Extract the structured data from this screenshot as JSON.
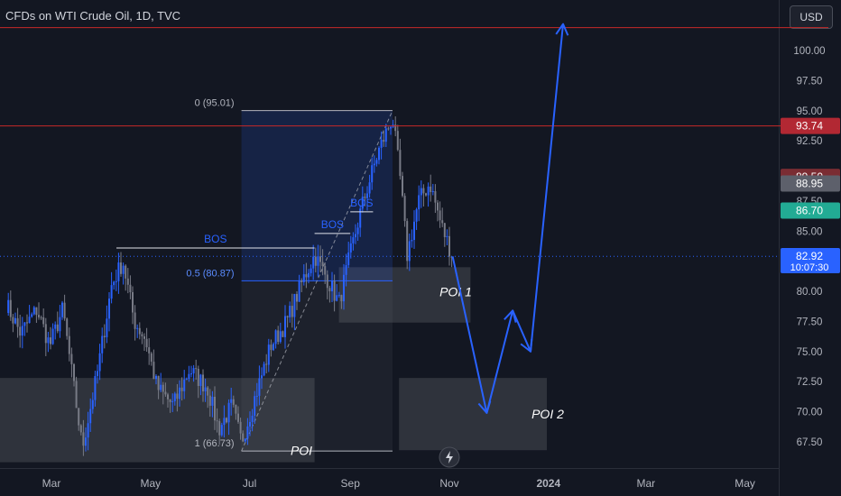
{
  "header": {
    "title": "CFDs on WTI Crude Oil, 1D, TVC",
    "currency": "USD"
  },
  "colors": {
    "background": "#131722",
    "bull": "#2962ff",
    "bear": "#787b86",
    "resistance": "#c62828",
    "fib": "#2962ff",
    "arrow": "#2962ff"
  },
  "chart_data": {
    "type": "candlestick",
    "symbol": "CFDs on WTI Crude Oil",
    "interval": "1D",
    "source": "TVC",
    "ylim": [
      66.0,
      102.5
    ],
    "y_ticks": [
      "100.00",
      "97.50",
      "95.00",
      "92.50",
      "87.50",
      "85.00",
      "80.00",
      "77.50",
      "75.00",
      "72.50",
      "70.00",
      "67.50"
    ],
    "x_ticks": [
      "Mar",
      "May",
      "Jul",
      "Sep",
      "Nov",
      "2024",
      "Mar",
      "May"
    ],
    "close_path": [
      {
        "date": "2023-02-01",
        "price": 79.0
      },
      {
        "date": "2023-02-10",
        "price": 76.5
      },
      {
        "date": "2023-02-20",
        "price": 78.5
      },
      {
        "date": "2023-02-28",
        "price": 75.5
      },
      {
        "date": "2023-03-08",
        "price": 78.5
      },
      {
        "date": "2023-03-20",
        "price": 67.0
      },
      {
        "date": "2023-03-29",
        "price": 73.0
      },
      {
        "date": "2023-04-07",
        "price": 80.5
      },
      {
        "date": "2023-04-14",
        "price": 82.5
      },
      {
        "date": "2023-04-21",
        "price": 77.5
      },
      {
        "date": "2023-04-28",
        "price": 76.0
      },
      {
        "date": "2023-05-05",
        "price": 72.0
      },
      {
        "date": "2023-05-15",
        "price": 70.5
      },
      {
        "date": "2023-05-25",
        "price": 73.5
      },
      {
        "date": "2023-06-05",
        "price": 72.0
      },
      {
        "date": "2023-06-12",
        "price": 68.5
      },
      {
        "date": "2023-06-20",
        "price": 70.5
      },
      {
        "date": "2023-06-26",
        "price": 67.5
      },
      {
        "date": "2023-07-05",
        "price": 71.5
      },
      {
        "date": "2023-07-14",
        "price": 75.5
      },
      {
        "date": "2023-07-24",
        "price": 77.5
      },
      {
        "date": "2023-08-03",
        "price": 81.0
      },
      {
        "date": "2023-08-10",
        "price": 83.0
      },
      {
        "date": "2023-08-18",
        "price": 81.0
      },
      {
        "date": "2023-08-25",
        "price": 79.0
      },
      {
        "date": "2023-08-31",
        "price": 82.5
      },
      {
        "date": "2023-09-08",
        "price": 87.0
      },
      {
        "date": "2023-09-18",
        "price": 91.5
      },
      {
        "date": "2023-09-27",
        "price": 94.5
      },
      {
        "date": "2023-10-02",
        "price": 89.0
      },
      {
        "date": "2023-10-06",
        "price": 83.0
      },
      {
        "date": "2023-10-13",
        "price": 87.5
      },
      {
        "date": "2023-10-20",
        "price": 89.0
      },
      {
        "date": "2023-10-27",
        "price": 85.5
      },
      {
        "date": "2023-11-03",
        "price": 82.9
      }
    ],
    "horizontal_lines": [
      {
        "price": 101.9
      },
      {
        "price": 93.74
      }
    ],
    "price_labels": [
      {
        "text": "93.74",
        "color": "#b22833"
      },
      {
        "text": "89.50",
        "color": "#7a2c33"
      },
      {
        "text": "88.95",
        "color": "#5d606b"
      },
      {
        "text": "86.70",
        "color": "#22ab94"
      },
      {
        "text": "82.92",
        "sub": "10:07:30",
        "color": "#2962ff"
      }
    ],
    "fib": {
      "from": {
        "date": "2023-06-26",
        "price": 66.73
      },
      "to": {
        "date": "2023-09-27",
        "price": 95.01
      },
      "levels": [
        {
          "ratio": 0,
          "label": "0 (95.01)"
        },
        {
          "ratio": 0.5,
          "label": "0.5 (80.87)"
        },
        {
          "ratio": 1,
          "label": "1 (66.73)"
        }
      ]
    },
    "bos": [
      {
        "label": "BOS",
        "price": 83.6,
        "from": "2023-04-10",
        "to": "2023-08-10"
      },
      {
        "label": "BOS",
        "price": 84.8,
        "from": "2023-08-10",
        "to": "2023-09-01"
      },
      {
        "label": "BOS",
        "price": 86.6,
        "from": "2023-09-01",
        "to": "2023-09-15"
      }
    ],
    "poi_zones": [
      {
        "label": "POI",
        "price_top": 72.8,
        "price_bottom": 65.8,
        "from": "2023-01-01",
        "to": "2023-08-10"
      },
      {
        "label": "POI 1",
        "price_top": 82.0,
        "price_bottom": 77.4,
        "from": "2023-08-25",
        "to": "2023-11-14"
      },
      {
        "label": "POI 2",
        "price_top": 72.8,
        "price_bottom": 66.8,
        "from": "2023-10-01",
        "to": "2023-12-31"
      }
    ],
    "projection": [
      {
        "date": "2023-11-03",
        "price": 82.9
      },
      {
        "date": "2023-11-24",
        "price": 69.9
      },
      {
        "date": "2023-12-10",
        "price": 78.4
      },
      {
        "date": "2023-12-21",
        "price": 75.0
      },
      {
        "date": "2024-01-10",
        "price": 102.2
      }
    ]
  }
}
